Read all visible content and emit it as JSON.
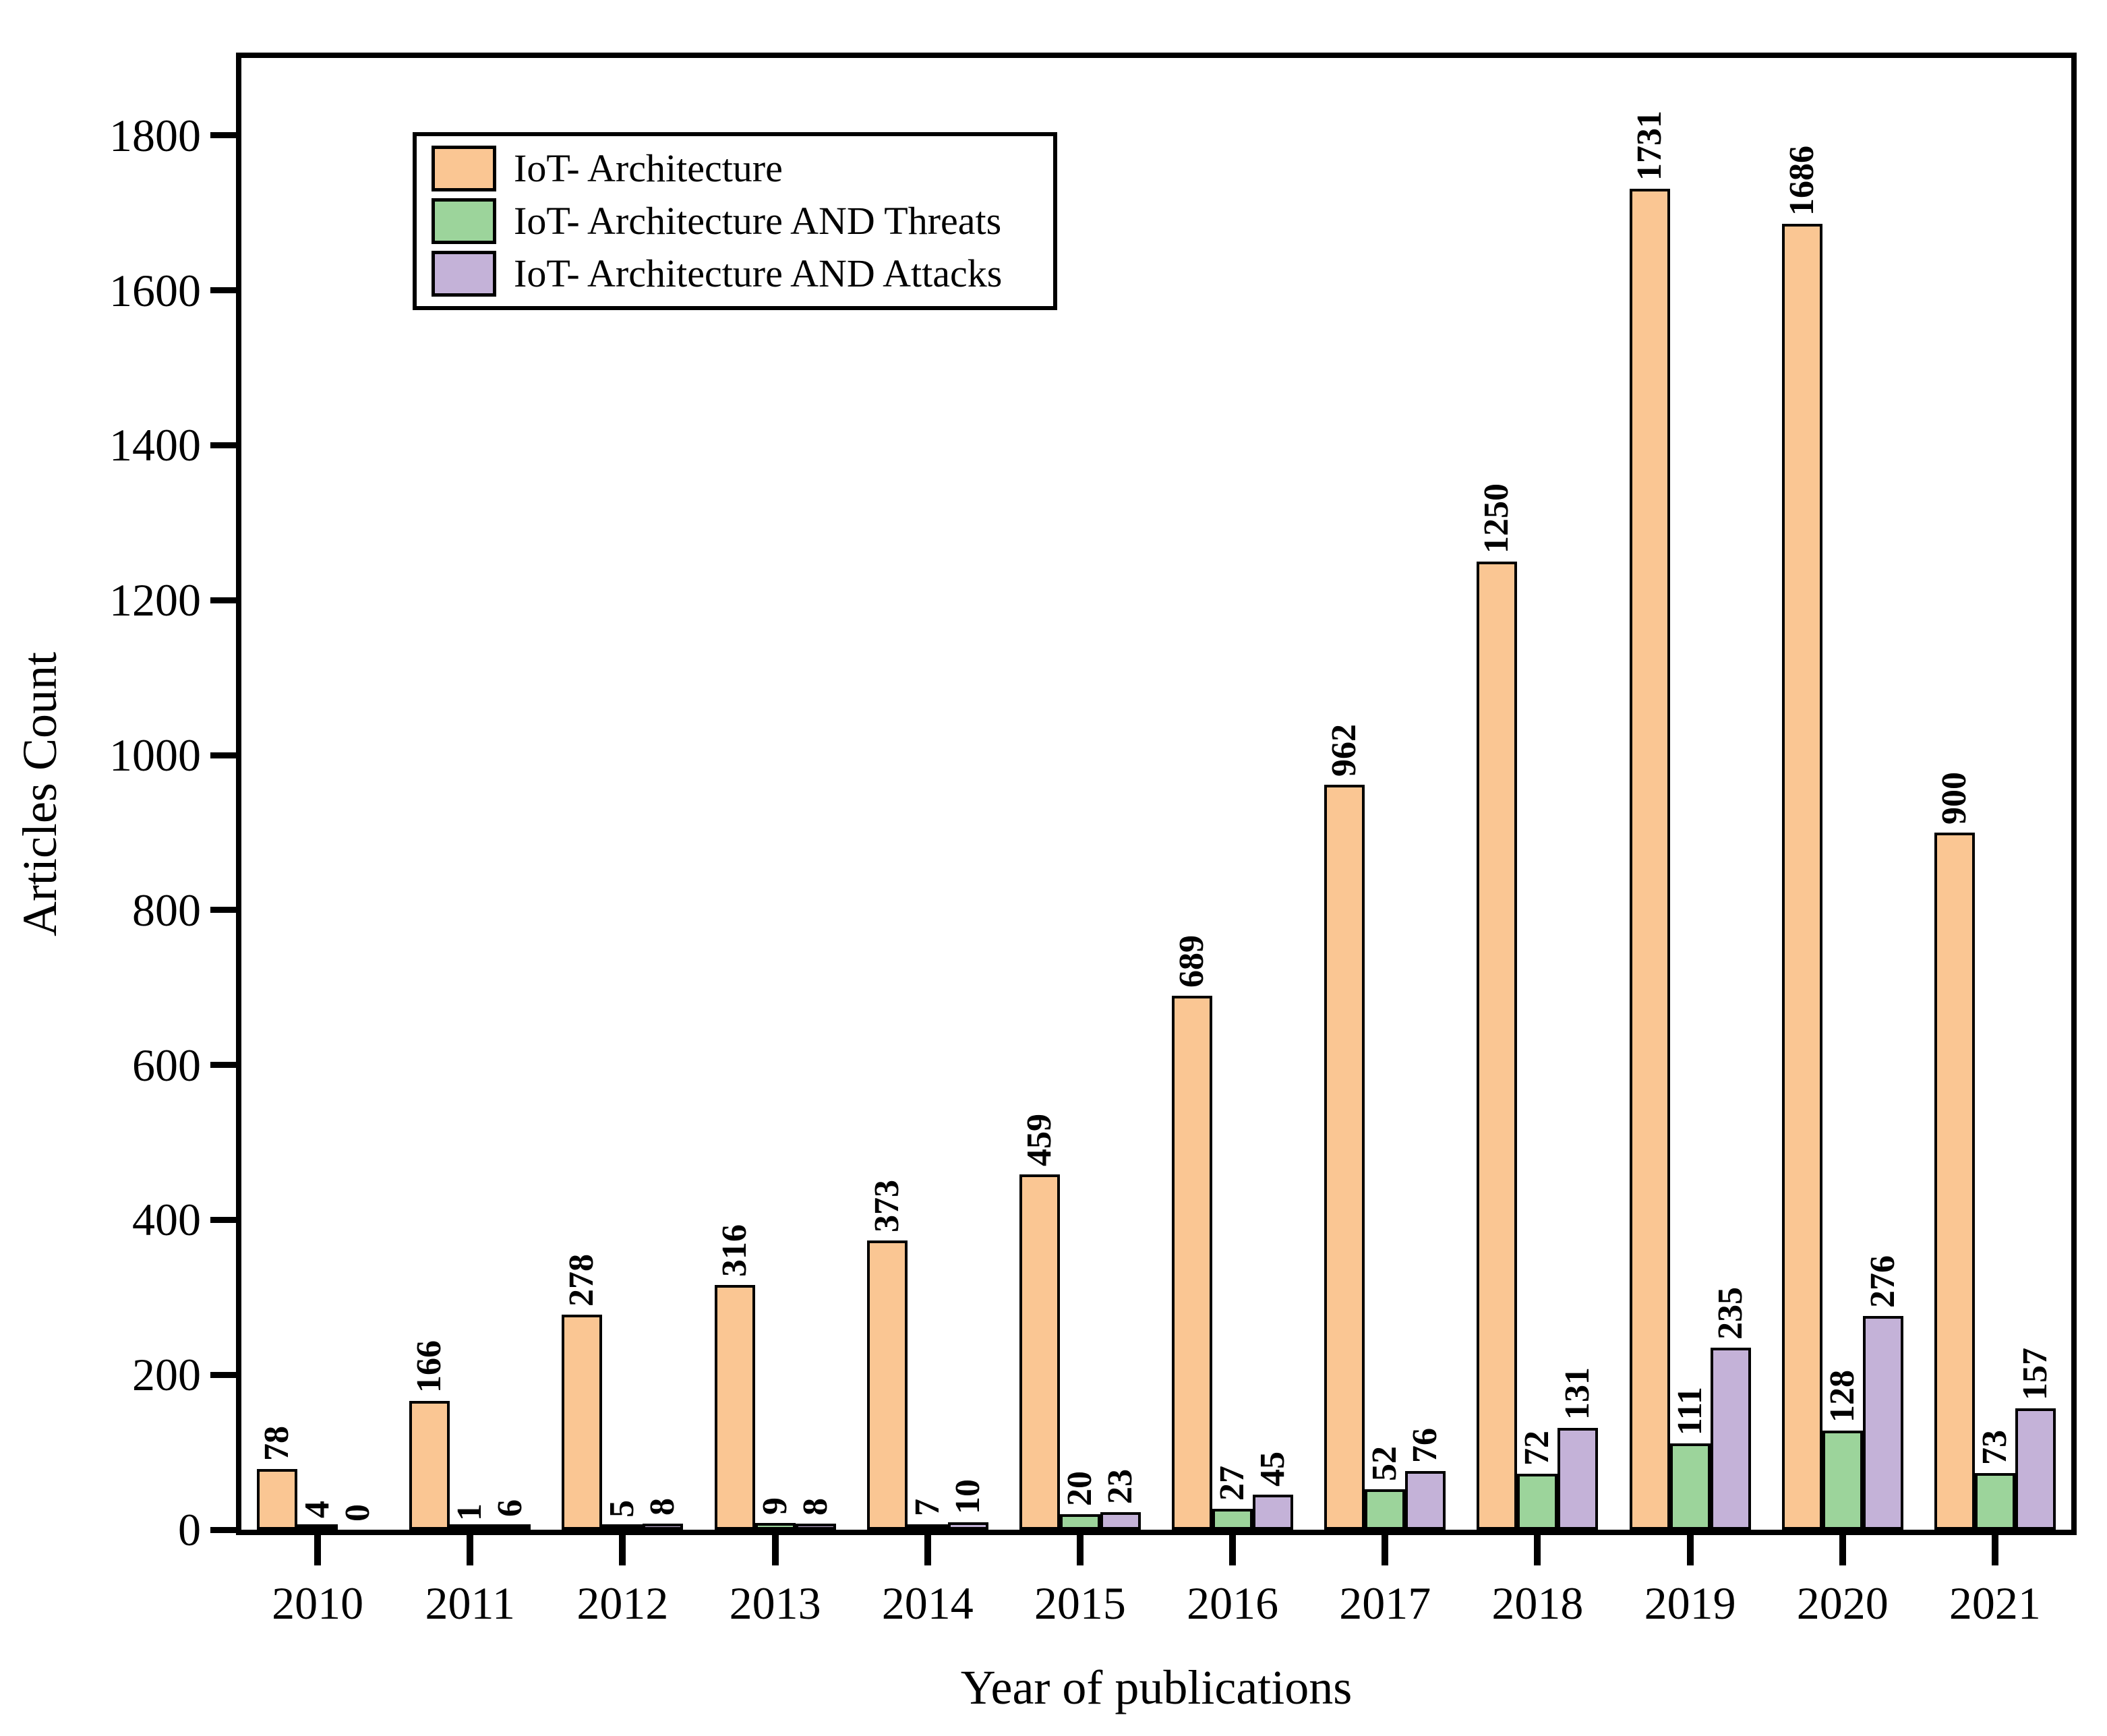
{
  "chart_data": {
    "type": "bar",
    "title": "",
    "xlabel": "Year of publications",
    "ylabel": "Articles Count",
    "categories": [
      "2010",
      "2011",
      "2012",
      "2013",
      "2014",
      "2015",
      "2016",
      "2017",
      "2018",
      "2019",
      "2020",
      "2021"
    ],
    "series": [
      {
        "name": "IoT- Architecture",
        "color": "#FAC693",
        "values": [
          78,
          166,
          278,
          316,
          373,
          459,
          689,
          962,
          1250,
          1731,
          1686,
          900
        ]
      },
      {
        "name": "IoT- Architecture AND Threats",
        "color": "#9CD49B",
        "values": [
          4,
          1,
          5,
          9,
          7,
          20,
          27,
          52,
          72,
          111,
          128,
          73
        ]
      },
      {
        "name": "IoT- Architecture AND Attacks",
        "color": "#C4B2D8",
        "values": [
          0,
          6,
          8,
          8,
          10,
          23,
          45,
          76,
          131,
          235,
          276,
          157
        ]
      }
    ],
    "ylim": [
      0,
      1900
    ],
    "yticks": [
      0,
      200,
      400,
      600,
      800,
      1000,
      1200,
      1400,
      1600,
      1800
    ],
    "grid": false,
    "legend_position": "upper-left",
    "bar_labels_rotated": true,
    "axis_color": "#000000"
  }
}
